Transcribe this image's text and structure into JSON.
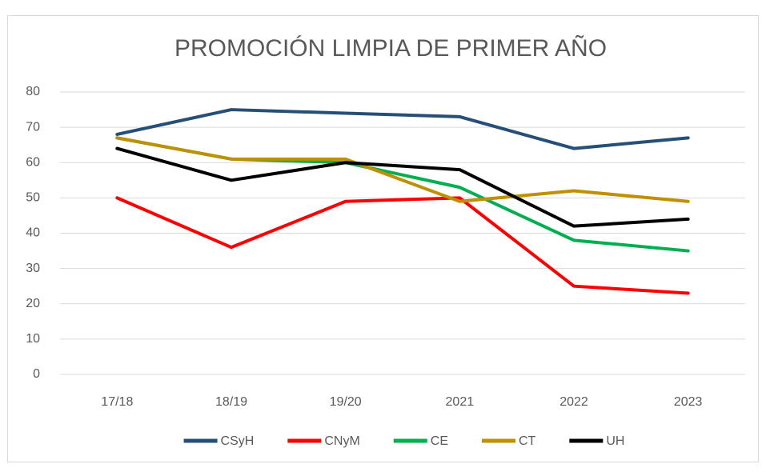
{
  "chart_data": {
    "type": "line",
    "title": "PROMOCIÓN LIMPIA DE PRIMER AÑO",
    "categories": [
      "17/18",
      "18/19",
      "19/20",
      "2021",
      "2022",
      "2023"
    ],
    "series": [
      {
        "name": "CSyH",
        "color": "#264f78",
        "values": [
          68,
          75,
          74,
          73,
          64,
          67
        ]
      },
      {
        "name": "CNyM",
        "color": "#ff0000",
        "values": [
          50,
          36,
          49,
          50,
          25,
          23
        ]
      },
      {
        "name": "CE",
        "color": "#00b050",
        "values": [
          67,
          61,
          60,
          53,
          38,
          35
        ]
      },
      {
        "name": "CT",
        "color": "#bf9000",
        "values": [
          67,
          61,
          61,
          49,
          52,
          49
        ]
      },
      {
        "name": "UH",
        "color": "#000000",
        "values": [
          64,
          55,
          60,
          58,
          42,
          44
        ]
      }
    ],
    "ylim": [
      0,
      80
    ],
    "yticks": [
      0,
      10,
      20,
      30,
      40,
      50,
      60,
      70,
      80
    ],
    "grid": true,
    "legend": "bottom"
  }
}
